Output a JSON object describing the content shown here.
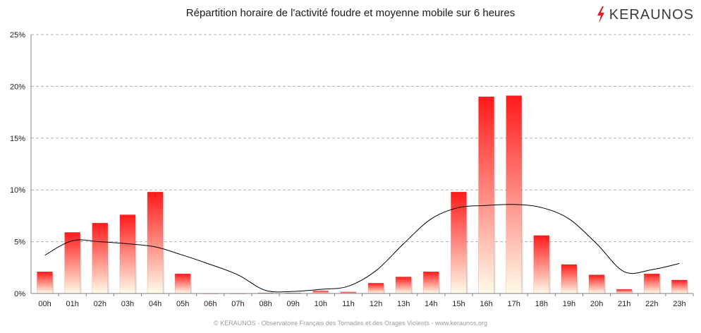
{
  "header": {
    "logo_text": "KERAUNOS",
    "logo_icon": "lightning-bolt-icon"
  },
  "footer": {
    "text": "© KERAUNOS - Observatoire Français des Tornades et des Orages Violents - www.keraunos.org"
  },
  "colors": {
    "bar_top": "#ff1a1a",
    "bar_bottom": "#fffbe8",
    "line": "#000000",
    "grid": "#b0b0b0",
    "logo_bolt": "#e41e26"
  },
  "chart_data": {
    "type": "bar",
    "title": "Répartition horaire de l'activité foudre et moyenne mobile sur 6 heures",
    "xlabel": "",
    "ylabel": "",
    "ylim": [
      0,
      25
    ],
    "yticks": [
      "0%",
      "5%",
      "10%",
      "15%",
      "20%",
      "25%"
    ],
    "grid": true,
    "categories": [
      "00h",
      "01h",
      "02h",
      "03h",
      "04h",
      "05h",
      "06h",
      "07h",
      "08h",
      "09h",
      "10h",
      "11h",
      "12h",
      "13h",
      "14h",
      "15h",
      "16h",
      "17h",
      "18h",
      "19h",
      "20h",
      "21h",
      "22h",
      "23h"
    ],
    "series": [
      {
        "type": "bar",
        "values": [
          2.1,
          5.9,
          6.8,
          7.6,
          9.8,
          1.9,
          0.0,
          0.0,
          0.05,
          0.05,
          0.25,
          0.15,
          1.0,
          1.6,
          2.1,
          9.8,
          19.0,
          19.1,
          5.6,
          2.8,
          1.8,
          0.4,
          1.9,
          1.3
        ]
      },
      {
        "type": "line",
        "smooth": true,
        "values": [
          3.7,
          5.1,
          5.0,
          4.8,
          4.5,
          3.7,
          2.8,
          1.8,
          0.3,
          0.2,
          0.4,
          0.7,
          2.2,
          4.8,
          7.2,
          8.3,
          8.5,
          8.6,
          8.3,
          7.2,
          4.8,
          2.1,
          2.3,
          2.9
        ]
      }
    ]
  }
}
